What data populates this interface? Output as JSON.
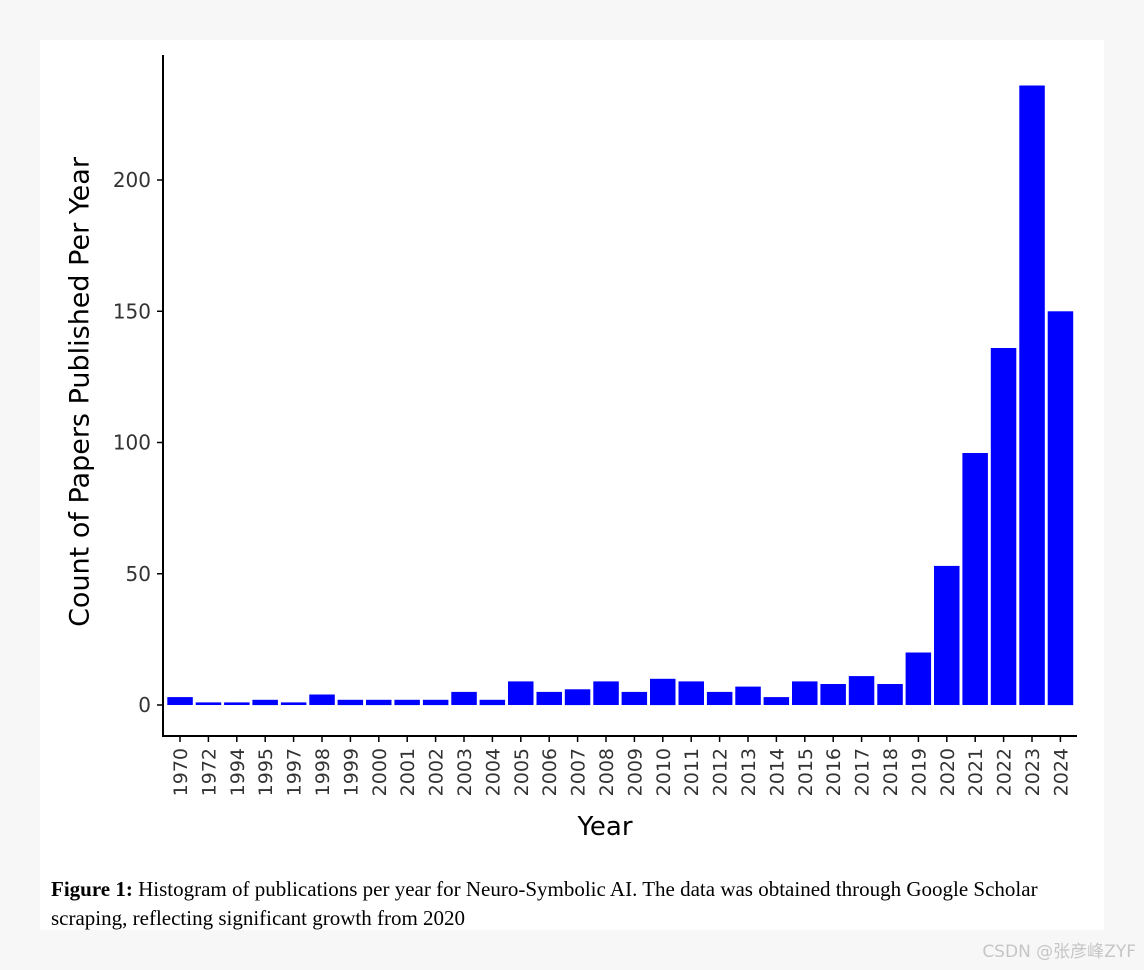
{
  "chart_data": {
    "type": "bar",
    "title": "",
    "xlabel": "Year",
    "ylabel": "Count of Papers Published Per Year",
    "categories": [
      "1970",
      "1972",
      "1994",
      "1995",
      "1997",
      "1998",
      "1999",
      "2000",
      "2001",
      "2002",
      "2003",
      "2004",
      "2005",
      "2006",
      "2007",
      "2008",
      "2009",
      "2010",
      "2011",
      "2012",
      "2013",
      "2014",
      "2015",
      "2016",
      "2017",
      "2018",
      "2019",
      "2020",
      "2021",
      "2022",
      "2023",
      "2024"
    ],
    "values": [
      3,
      1,
      1,
      2,
      1,
      4,
      2,
      2,
      2,
      2,
      5,
      2,
      9,
      5,
      6,
      9,
      5,
      10,
      9,
      5,
      7,
      3,
      9,
      8,
      11,
      8,
      20,
      53,
      96,
      136,
      236,
      150
    ],
    "yticks": [
      0,
      50,
      100,
      150,
      200
    ],
    "ylim": [
      -12,
      247
    ],
    "bar_color": "#0000ff",
    "grid": false
  },
  "caption": {
    "label": "Figure 1:",
    "text": "Histogram of publications per year for Neuro-Symbolic AI. The data was obtained through Google Scholar scraping, reflecting significant growth from 2020"
  },
  "watermark": "CSDN @张彦峰ZYF"
}
